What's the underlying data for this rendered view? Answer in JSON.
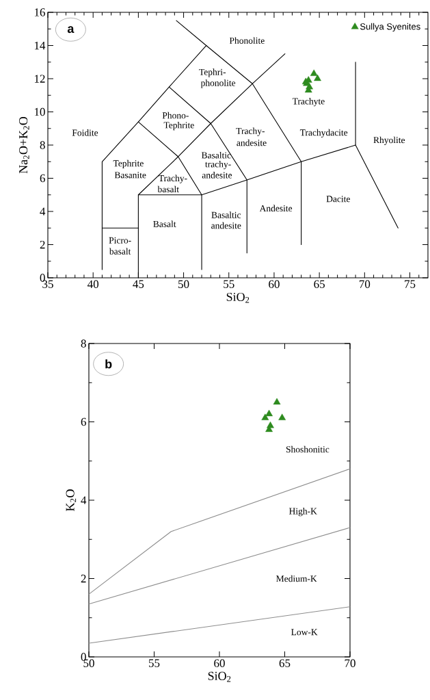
{
  "chart_data": [
    {
      "type": "scatter",
      "xlabel": "SiO$_{2}$",
      "ylabel": "Na$_{2}$O+K$_{2}$O",
      "marker": "triangle",
      "legend": "top right",
      "xlim": [
        35,
        77
      ],
      "ylim": [
        0,
        16
      ],
      "xticks": [
        35,
        40,
        45,
        50,
        55,
        60,
        65,
        70,
        75,
        {
          "value": 36,
          "label": null
        },
        {
          "value": 37,
          "label": null
        },
        {
          "value": 38,
          "label": null
        },
        {
          "value": 39,
          "label": null
        },
        {
          "value": 41,
          "label": null
        },
        {
          "value": 42,
          "label": null
        },
        {
          "value": 43,
          "label": null
        },
        {
          "value": 44,
          "label": null
        },
        {
          "value": 46,
          "label": null
        },
        {
          "value": 47,
          "label": null
        },
        {
          "value": 48,
          "label": null
        },
        {
          "value": 49,
          "label": null
        },
        {
          "value": 51,
          "label": null
        },
        {
          "value": 52,
          "label": null
        },
        {
          "value": 53,
          "label": null
        },
        {
          "value": 54,
          "label": null
        },
        {
          "value": 56,
          "label": null
        },
        {
          "value": 57,
          "label": null
        },
        {
          "value": 58,
          "label": null
        },
        {
          "value": 59,
          "label": null
        },
        {
          "value": 61,
          "label": null
        },
        {
          "value": 62,
          "label": null
        },
        {
          "value": 63,
          "label": null
        },
        {
          "value": 64,
          "label": null
        },
        {
          "value": 66,
          "label": null
        },
        {
          "value": 67,
          "label": null
        },
        {
          "value": 68,
          "label": null
        },
        {
          "value": 69,
          "label": null
        },
        {
          "value": 71,
          "label": null
        },
        {
          "value": 72,
          "label": null
        },
        {
          "value": 73,
          "label": null
        },
        {
          "value": 74,
          "label": null
        },
        {
          "value": 76,
          "label": null
        }
      ],
      "yticks": [
        0,
        2,
        4,
        6,
        8,
        10,
        12,
        14,
        16,
        {
          "value": 1,
          "label": null
        },
        {
          "value": 3,
          "label": null
        },
        {
          "value": 5,
          "label": null
        },
        {
          "value": 7,
          "label": null
        },
        {
          "value": 9,
          "label": null
        },
        {
          "value": 11,
          "label": null
        },
        {
          "value": 13,
          "label": null
        },
        {
          "value": 15,
          "label": null
        }
      ],
      "series": [
        {
          "name": "Sullya Syenites",
          "color": "#2e8b1f",
          "x": [
            64.4,
            64.8,
            63.8,
            63.5,
            63.9,
            63.8,
            63.6
          ],
          "values": [
            12.3,
            12.0,
            11.9,
            11.8,
            11.5,
            11.3,
            11.7
          ]
        },
        {
          "type": "line",
          "marker": "none",
          "color": "#000000",
          "x": [
            41,
            41,
            45,
            48.4,
            52.5
          ],
          "values": [
            0.5,
            7,
            9.4,
            11.5,
            14
          ]
        },
        {
          "type": "line",
          "marker": "none",
          "color": "#000000",
          "x": [
            41,
            45
          ],
          "values": [
            3,
            3
          ]
        },
        {
          "type": "line",
          "marker": "none",
          "color": "#000000",
          "x": [
            45,
            45,
            52,
            52
          ],
          "values": [
            0,
            5,
            5,
            0.5
          ]
        },
        {
          "type": "line",
          "marker": "none",
          "color": "#000000",
          "x": [
            45,
            49.4,
            53,
            57.6,
            61.2
          ],
          "values": [
            5,
            7.3,
            9.3,
            11.7,
            13.5
          ]
        },
        {
          "type": "line",
          "marker": "none",
          "color": "#000000",
          "x": [
            52,
            49.4,
            45
          ],
          "values": [
            5,
            7.3,
            9.4
          ]
        },
        {
          "type": "line",
          "marker": "none",
          "color": "#000000",
          "x": [
            52,
            57,
            63,
            69
          ],
          "values": [
            5,
            5.9,
            7,
            8
          ]
        },
        {
          "type": "line",
          "marker": "none",
          "color": "#000000",
          "x": [
            57,
            57,
            53,
            48.4
          ],
          "values": [
            1.5,
            5.9,
            9.3,
            11.5
          ]
        },
        {
          "type": "line",
          "marker": "none",
          "color": "#000000",
          "x": [
            63,
            63,
            57.6,
            52.5,
            49.2
          ],
          "values": [
            2,
            7,
            11.7,
            14,
            15.5
          ]
        },
        {
          "type": "line",
          "marker": "none",
          "color": "#000000",
          "x": [
            69,
            69,
            73.7
          ],
          "values": [
            13,
            8,
            3
          ]
        }
      ],
      "annotations": [
        "a",
        "Phonolite",
        "Tephri-",
        "phonolite",
        "Foidite",
        "Phono-",
        "Tephrite",
        "Trachyte",
        "Trachy-",
        "andesite",
        "Trachydacite",
        "Rhyolite",
        "Tephrite",
        "Basanite",
        "Trachy-",
        "basalt",
        "Basaltic",
        "trachy-",
        "andesite",
        "Andesite",
        "Dacite",
        "Basalt",
        "Basaltic",
        "andesite",
        "Picro-",
        "basalt"
      ]
    },
    {
      "type": "scatter",
      "xlabel": "SiO$_{2}$",
      "ylabel": "K$_{2}$O",
      "marker": "triangle",
      "xlim": [
        50,
        70
      ],
      "ylim": [
        0,
        8
      ],
      "xticks": [
        50,
        55,
        60,
        65,
        70
      ],
      "yticks": [
        0,
        2,
        4,
        6,
        8,
        {
          "value": 1,
          "label": null
        },
        {
          "value": 3,
          "label": null
        },
        {
          "value": 5,
          "label": null
        },
        {
          "value": 7,
          "label": null
        }
      ],
      "series": [
        {
          "color": "#2e8b1f",
          "x": [
            64.4,
            64.8,
            63.8,
            63.5,
            63.9,
            63.8
          ],
          "values": [
            6.5,
            6.1,
            6.2,
            6.1,
            5.9,
            5.8
          ]
        },
        {
          "type": "line",
          "marker": "none",
          "color": "#8c8c8c",
          "x": [
            50,
            56.3,
            70
          ],
          "values": [
            1.6,
            3.2,
            4.8
          ]
        },
        {
          "type": "line",
          "marker": "none",
          "color": "#8c8c8c",
          "x": [
            50,
            70
          ],
          "values": [
            1.35,
            3.3
          ]
        },
        {
          "type": "line",
          "marker": "none",
          "color": "#8c8c8c",
          "x": [
            50,
            70
          ],
          "values": [
            0.35,
            1.28
          ]
        }
      ],
      "annotations": [
        "b",
        "Shoshonitic",
        "High-K",
        "Medium-K",
        "Low-K"
      ]
    }
  ]
}
